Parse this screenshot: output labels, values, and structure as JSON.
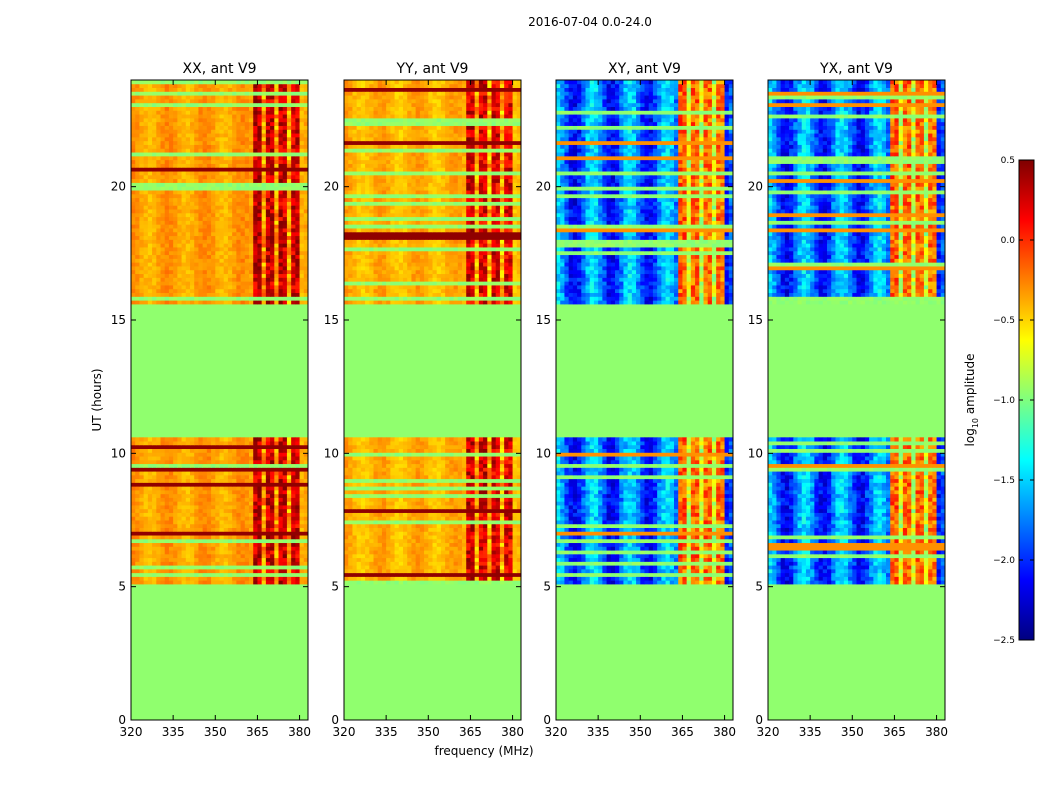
{
  "suptitle": "2016-07-04 0.0-24.0",
  "xlabel": "frequency (MHz)",
  "ylabel": "UT (hours)",
  "colorbar": {
    "label_main": "log",
    "label_sub": "10",
    "label_rest": " amplitude",
    "range": [
      -2.5,
      0.5
    ],
    "ticks": [
      0.5,
      0.0,
      -0.5,
      -1.0,
      -1.5,
      -2.0,
      -2.5
    ],
    "tick_labels": [
      "0.5",
      "0.0",
      "−0.5",
      "−1.0",
      "−1.5",
      "−2.0",
      "−2.5"
    ],
    "colors": [
      "#00007f",
      "#0000ff",
      "#007fff",
      "#00ffff",
      "#7fff7f",
      "#ffff00",
      "#ff7f00",
      "#ff0000",
      "#7f0000"
    ]
  },
  "chart_data": [
    {
      "type": "heatmap",
      "title": "XX, ant V9",
      "xlim": [
        320,
        383
      ],
      "ylim": [
        0,
        24
      ],
      "xticks": [
        320,
        335,
        350,
        365,
        380
      ],
      "yticks": [
        0,
        5,
        10,
        15,
        20
      ],
      "ytick_labels": [
        "0",
        "5",
        "10",
        "15",
        "20"
      ],
      "blank_value": -0.95,
      "data_ut_ranges": [
        [
          5.1,
          10.6
        ],
        [
          15.6,
          24.0
        ]
      ],
      "band_mhz": [
        363,
        380
      ],
      "base_value": -0.35,
      "band_value": 0.15
    },
    {
      "type": "heatmap",
      "title": "YY, ant V9",
      "xlim": [
        320,
        383
      ],
      "ylim": [
        0,
        24
      ],
      "xticks": [
        320,
        335,
        350,
        365,
        380
      ],
      "yticks": [
        0,
        5,
        10,
        15,
        20
      ],
      "ytick_labels": [
        "0",
        "5",
        "10",
        "15",
        "20"
      ],
      "blank_value": -0.95,
      "data_ut_ranges": [
        [
          5.1,
          10.6
        ],
        [
          15.6,
          24.0
        ]
      ],
      "band_mhz": [
        363,
        380
      ],
      "base_value": -0.4,
      "band_value": 0.1
    },
    {
      "type": "heatmap",
      "title": "XY, ant V9",
      "xlim": [
        320,
        383
      ],
      "ylim": [
        0,
        24
      ],
      "xticks": [
        320,
        335,
        350,
        365,
        380
      ],
      "yticks": [
        0,
        5,
        10,
        15,
        20
      ],
      "ytick_labels": [
        "0",
        "5",
        "10",
        "15",
        "20"
      ],
      "blank_value": -0.95,
      "data_ut_ranges": [
        [
          5.1,
          10.6
        ],
        [
          15.6,
          24.0
        ]
      ],
      "band_mhz": [
        363,
        380
      ],
      "base_value": -1.8,
      "band_value": -0.3
    },
    {
      "type": "heatmap",
      "title": "YX, ant V9",
      "xlim": [
        320,
        383
      ],
      "ylim": [
        0,
        24
      ],
      "xticks": [
        320,
        335,
        350,
        365,
        380
      ],
      "yticks": [
        0,
        5,
        10,
        15,
        20
      ],
      "ytick_labels": [
        "0",
        "5",
        "10",
        "15",
        "20"
      ],
      "blank_value": -0.95,
      "data_ut_ranges": [
        [
          5.1,
          10.6
        ],
        [
          15.6,
          24.0
        ]
      ],
      "band_mhz": [
        363,
        380
      ],
      "base_value": -1.8,
      "band_value": -0.3
    }
  ]
}
